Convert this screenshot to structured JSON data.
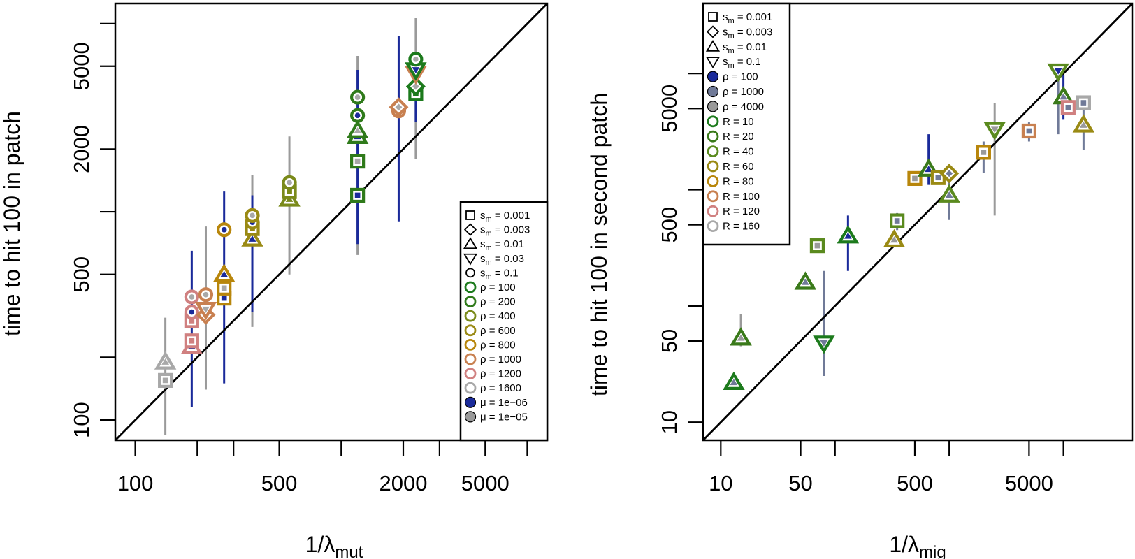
{
  "colors": {
    "sm": "#1c7a1c",
    "c2": "#2f7a1a",
    "c3": "#5a8a1e",
    "c4": "#7a8a1a",
    "c5": "#9a8a14",
    "c6": "#b8860b",
    "c7": "#c88050",
    "c8": "#d08080",
    "c9": "#a8a8a8",
    "blue": "#1a2a9a",
    "slate": "#707a98",
    "grey": "#9a9a9a"
  },
  "chart_data": [
    {
      "type": "scatter",
      "title": "",
      "xlabel": "1/λ",
      "xlabel_sub": "mut",
      "ylabel": "time to hit 100 in patch",
      "xscale": "log",
      "yscale": "log",
      "xlim": [
        80,
        10000
      ],
      "ylim": [
        80,
        10000
      ],
      "xticks": [
        100,
        200,
        300,
        500,
        1000,
        2000,
        3000,
        5000,
        8000
      ],
      "xtick_labels": [
        "100",
        "",
        "",
        "500",
        "",
        "2000",
        "",
        "5000",
        ""
      ],
      "yticks": [
        100,
        200,
        500,
        1000,
        2000,
        5000,
        8000
      ],
      "ytick_labels": [
        "100",
        "",
        "500",
        "",
        "2000",
        "5000",
        ""
      ],
      "diagonal": true,
      "legend": {
        "placement": "bottom-right",
        "entries": [
          {
            "label": "s",
            "sub": "m",
            "value": " = 0.001",
            "shape": "square",
            "style": "open-black"
          },
          {
            "label": "s",
            "sub": "m",
            "value": " = 0.003",
            "shape": "diamond",
            "style": "open-black"
          },
          {
            "label": "s",
            "sub": "m",
            "value": " = 0.01",
            "shape": "triangle-up",
            "style": "open-black"
          },
          {
            "label": "s",
            "sub": "m",
            "value": " = 0.03",
            "shape": "triangle-down",
            "style": "open-black"
          },
          {
            "label": "s",
            "sub": "m",
            "value": " = 0.1",
            "shape": "circle",
            "style": "open-black"
          },
          {
            "label": "ρ = 100",
            "shape": "circle",
            "style": "ring",
            "color": "#1c7a1c"
          },
          {
            "label": "ρ = 200",
            "shape": "circle",
            "style": "ring",
            "color": "#2f7a1a"
          },
          {
            "label": "ρ = 400",
            "shape": "circle",
            "style": "ring",
            "color": "#7a8a1a"
          },
          {
            "label": "ρ = 600",
            "shape": "circle",
            "style": "ring",
            "color": "#9a8a14"
          },
          {
            "label": "ρ = 800",
            "shape": "circle",
            "style": "ring",
            "color": "#b8860b"
          },
          {
            "label": "ρ = 1000",
            "shape": "circle",
            "style": "ring",
            "color": "#c88050"
          },
          {
            "label": "ρ = 1200",
            "shape": "circle",
            "style": "ring",
            "color": "#d08080"
          },
          {
            "label": "ρ = 1600",
            "shape": "circle",
            "style": "ring",
            "color": "#a8a8a8"
          },
          {
            "label": "μ = 1e−06",
            "shape": "circle",
            "style": "filled",
            "color": "#1a2a9a"
          },
          {
            "label": "μ = 1e−05",
            "shape": "circle",
            "style": "filled",
            "color": "#9a9a9a"
          }
        ]
      },
      "errorbars": [
        {
          "x": 140,
          "lo": 85,
          "hi": 310,
          "color": "#9a9a9a"
        },
        {
          "x": 188,
          "lo": 115,
          "hi": 650,
          "color": "#1a2a9a"
        },
        {
          "x": 220,
          "lo": 140,
          "hi": 850,
          "color": "#9a9a9a"
        },
        {
          "x": 270,
          "lo": 150,
          "hi": 1250,
          "color": "#1a2a9a"
        },
        {
          "x": 370,
          "lo": 280,
          "hi": 1500,
          "color": "#9a9a9a"
        },
        {
          "x": 370,
          "lo": 330,
          "hi": 1200,
          "color": "#1a2a9a"
        },
        {
          "x": 560,
          "lo": 500,
          "hi": 2300,
          "color": "#9a9a9a"
        },
        {
          "x": 1200,
          "lo": 620,
          "hi": 5600,
          "color": "#9a9a9a"
        },
        {
          "x": 1200,
          "lo": 700,
          "hi": 4800,
          "color": "#1a2a9a"
        },
        {
          "x": 1900,
          "lo": 900,
          "hi": 7000,
          "color": "#1a2a9a"
        },
        {
          "x": 2300,
          "lo": 1800,
          "hi": 8500,
          "color": "#9a9a9a"
        },
        {
          "x": 2300,
          "lo": 2700,
          "hi": 5000,
          "color": "#1a2a9a"
        }
      ],
      "points": [
        {
          "x": 140,
          "y": 190,
          "shape": "triangle-up",
          "edge": "#a8a8a8",
          "fill": "#a8a8a8"
        },
        {
          "x": 140,
          "y": 155,
          "shape": "square",
          "edge": "#a8a8a8",
          "fill": "#a8a8a8"
        },
        {
          "x": 188,
          "y": 225,
          "shape": "triangle-up",
          "edge": "#d08080",
          "fill": "#1a2a9a"
        },
        {
          "x": 188,
          "y": 240,
          "shape": "square",
          "edge": "#d08080",
          "fill": "#d08080"
        },
        {
          "x": 188,
          "y": 300,
          "shape": "square",
          "edge": "#d08080",
          "fill": "#d08080"
        },
        {
          "x": 188,
          "y": 330,
          "shape": "circle",
          "edge": "#d08080",
          "fill": "#1a2a9a"
        },
        {
          "x": 188,
          "y": 390,
          "shape": "circle",
          "edge": "#d08080",
          "fill": "#a8a8a8"
        },
        {
          "x": 220,
          "y": 320,
          "shape": "diamond",
          "edge": "#c88050",
          "fill": "#a8a8a8"
        },
        {
          "x": 220,
          "y": 340,
          "shape": "triangle-down",
          "edge": "#c88050",
          "fill": "#a8a8a8"
        },
        {
          "x": 220,
          "y": 400,
          "shape": "circle",
          "edge": "#c88050",
          "fill": "#a8a8a8"
        },
        {
          "x": 270,
          "y": 385,
          "shape": "square",
          "edge": "#b8860b",
          "fill": "#1a2a9a"
        },
        {
          "x": 270,
          "y": 430,
          "shape": "square",
          "edge": "#b8860b",
          "fill": "#a8a8a8"
        },
        {
          "x": 270,
          "y": 500,
          "shape": "triangle-up",
          "edge": "#b8860b",
          "fill": "#1a2a9a"
        },
        {
          "x": 270,
          "y": 820,
          "shape": "circle",
          "edge": "#b8860b",
          "fill": "#1a2a9a"
        },
        {
          "x": 370,
          "y": 740,
          "shape": "triangle-up",
          "edge": "#9a8a14",
          "fill": "#1a2a9a"
        },
        {
          "x": 370,
          "y": 830,
          "shape": "square",
          "edge": "#9a8a14",
          "fill": "#9a8a14"
        },
        {
          "x": 370,
          "y": 890,
          "shape": "circle",
          "edge": "#9a8a14",
          "fill": "#1a2a9a"
        },
        {
          "x": 370,
          "y": 960,
          "shape": "circle",
          "edge": "#9a8a14",
          "fill": "#a8a8a8"
        },
        {
          "x": 560,
          "y": 1150,
          "shape": "triangle-up",
          "edge": "#7a8a1a",
          "fill": "#7a8a1a"
        },
        {
          "x": 560,
          "y": 1250,
          "shape": "square",
          "edge": "#7a8a1a",
          "fill": "#7a8a1a"
        },
        {
          "x": 560,
          "y": 1380,
          "shape": "circle",
          "edge": "#7a8a1a",
          "fill": "#a8a8a8"
        },
        {
          "x": 1200,
          "y": 1200,
          "shape": "square",
          "edge": "#2f7a1a",
          "fill": "#1a2a9a"
        },
        {
          "x": 1200,
          "y": 1750,
          "shape": "square",
          "edge": "#2f7a1a",
          "fill": "#a8a8a8"
        },
        {
          "x": 1200,
          "y": 2300,
          "shape": "triangle-up",
          "edge": "#2f7a1a",
          "fill": "#1a2a9a"
        },
        {
          "x": 1200,
          "y": 2450,
          "shape": "triangle-up",
          "edge": "#2f7a1a",
          "fill": "#a8a8a8"
        },
        {
          "x": 1200,
          "y": 2900,
          "shape": "circle",
          "edge": "#2f7a1a",
          "fill": "#1a2a9a"
        },
        {
          "x": 1200,
          "y": 3550,
          "shape": "circle",
          "edge": "#2f7a1a",
          "fill": "#a8a8a8"
        },
        {
          "x": 1900,
          "y": 3050,
          "shape": "circle",
          "edge": "#c88050",
          "fill": "#1a2a9a"
        },
        {
          "x": 1900,
          "y": 3180,
          "shape": "diamond",
          "edge": "#c88050",
          "fill": "#a8a8a8"
        },
        {
          "x": 2300,
          "y": 3700,
          "shape": "square",
          "edge": "#1c7a1c",
          "fill": "#1c7a1c"
        },
        {
          "x": 2300,
          "y": 4000,
          "shape": "diamond",
          "edge": "#1c7a1c",
          "fill": "#a8a8a8"
        },
        {
          "x": 2300,
          "y": 4600,
          "shape": "triangle-down",
          "edge": "#c88050",
          "fill": "#a8a8a8"
        },
        {
          "x": 2300,
          "y": 4800,
          "shape": "triangle-down",
          "edge": "#1c7a1c",
          "fill": "#1a2a9a"
        },
        {
          "x": 2300,
          "y": 5400,
          "shape": "circle",
          "edge": "#1c7a1c",
          "fill": "#a8a8a8"
        }
      ]
    },
    {
      "type": "scatter",
      "title": "",
      "xlabel": "1/λ",
      "xlabel_sub": "mig",
      "ylabel": "time to hit 100 in second patch",
      "xscale": "log",
      "yscale": "log",
      "xlim": [
        7,
        40000
      ],
      "ylim": [
        7,
        40000
      ],
      "xticks": [
        10,
        50,
        100,
        500,
        1000,
        5000,
        10000
      ],
      "xtick_labels": [
        "10",
        "50",
        "",
        "500",
        "",
        "5000",
        ""
      ],
      "yticks": [
        10,
        50,
        100,
        500,
        1000,
        5000,
        10000
      ],
      "ytick_labels": [
        "10",
        "50",
        "",
        "500",
        "",
        "5000",
        ""
      ],
      "diagonal": true,
      "legend": {
        "placement": "top-left",
        "entries": [
          {
            "label": "s",
            "sub": "m",
            "value": " = 0.001",
            "shape": "square",
            "style": "open-black"
          },
          {
            "label": "s",
            "sub": "m",
            "value": " = 0.003",
            "shape": "diamond",
            "style": "open-black"
          },
          {
            "label": "s",
            "sub": "m",
            "value": " = 0.01",
            "shape": "triangle-up",
            "style": "open-black"
          },
          {
            "label": "s",
            "sub": "m",
            "value": " = 0.1",
            "shape": "triangle-down",
            "style": "open-black"
          },
          {
            "label": "ρ = 100",
            "shape": "circle",
            "style": "filled",
            "color": "#1a2a9a"
          },
          {
            "label": "ρ = 1000",
            "shape": "circle",
            "style": "filled",
            "color": "#707a98"
          },
          {
            "label": "ρ = 4000",
            "shape": "circle",
            "style": "filled",
            "color": "#9a9a9a"
          },
          {
            "label": "R = 10",
            "shape": "circle",
            "style": "ring",
            "color": "#1c7a1c"
          },
          {
            "label": "R = 20",
            "shape": "circle",
            "style": "ring",
            "color": "#3a7a1a"
          },
          {
            "label": "R = 40",
            "shape": "circle",
            "style": "ring",
            "color": "#5a8a1e"
          },
          {
            "label": "R = 60",
            "shape": "circle",
            "style": "ring",
            "color": "#9a8a14"
          },
          {
            "label": "R = 80",
            "shape": "circle",
            "style": "ring",
            "color": "#b8860b"
          },
          {
            "label": "R = 100",
            "shape": "circle",
            "style": "ring",
            "color": "#c88050"
          },
          {
            "label": "R = 120",
            "shape": "circle",
            "style": "ring",
            "color": "#d08080"
          },
          {
            "label": "R = 160",
            "shape": "circle",
            "style": "ring",
            "color": "#a8a8a8"
          }
        ]
      },
      "errorbars": [
        {
          "x": 15,
          "lo": 45,
          "hi": 85,
          "color": "#9a9a9a"
        },
        {
          "x": 80,
          "lo": 25,
          "hi": 200,
          "color": "#707a98"
        },
        {
          "x": 130,
          "lo": 200,
          "hi": 600,
          "color": "#1a2a9a"
        },
        {
          "x": 350,
          "lo": 450,
          "hi": 630,
          "color": "#707a98"
        },
        {
          "x": 660,
          "lo": 1100,
          "hi": 3000,
          "color": "#1a2a9a"
        },
        {
          "x": 1000,
          "lo": 550,
          "hi": 1650,
          "color": "#707a98"
        },
        {
          "x": 2000,
          "lo": 1400,
          "hi": 2600,
          "color": "#707a98"
        },
        {
          "x": 2500,
          "lo": 600,
          "hi": 5600,
          "color": "#9a9a9a"
        },
        {
          "x": 5000,
          "lo": 2600,
          "hi": 3800,
          "color": "#707a98"
        },
        {
          "x": 9000,
          "lo": 3000,
          "hi": 11000,
          "color": "#707a98"
        },
        {
          "x": 10000,
          "lo": 4000,
          "hi": 9800,
          "color": "#1a2a9a"
        },
        {
          "x": 11000,
          "lo": 4500,
          "hi": 6200,
          "color": "#707a98"
        },
        {
          "x": 15000,
          "lo": 2200,
          "hi": 6200,
          "color": "#707a98"
        }
      ],
      "points": [
        {
          "x": 13,
          "y": 22,
          "shape": "triangle-up",
          "edge": "#1c7a1c",
          "fill": "#707a98"
        },
        {
          "x": 15,
          "y": 53,
          "shape": "triangle-up",
          "edge": "#3a7a1a",
          "fill": "#9a9a9a"
        },
        {
          "x": 55,
          "y": 160,
          "shape": "triangle-up",
          "edge": "#3a7a1a",
          "fill": "#707a98"
        },
        {
          "x": 70,
          "y": 330,
          "shape": "square",
          "edge": "#5a8a1e",
          "fill": "#9a9a9a"
        },
        {
          "x": 80,
          "y": 48,
          "shape": "triangle-down",
          "edge": "#1c7a1c",
          "fill": "#707a98"
        },
        {
          "x": 130,
          "y": 400,
          "shape": "triangle-up",
          "edge": "#1c7a1c",
          "fill": "#1a2a9a"
        },
        {
          "x": 330,
          "y": 370,
          "shape": "triangle-up",
          "edge": "#9a8a14",
          "fill": "#9a9a9a"
        },
        {
          "x": 350,
          "y": 540,
          "shape": "square",
          "edge": "#5a8a1e",
          "fill": "#707a98"
        },
        {
          "x": 500,
          "y": 1250,
          "shape": "square",
          "edge": "#b8860b",
          "fill": "#9a9a9a"
        },
        {
          "x": 660,
          "y": 1500,
          "shape": "triangle-up",
          "edge": "#3a7a1a",
          "fill": "#1a2a9a"
        },
        {
          "x": 800,
          "y": 1270,
          "shape": "square",
          "edge": "#9a8a14",
          "fill": "#707a98"
        },
        {
          "x": 1000,
          "y": 900,
          "shape": "triangle-up",
          "edge": "#5a8a1e",
          "fill": "#707a98"
        },
        {
          "x": 1000,
          "y": 1380,
          "shape": "diamond",
          "edge": "#9a8a14",
          "fill": "#707a98"
        },
        {
          "x": 2000,
          "y": 2100,
          "shape": "square",
          "edge": "#b8860b",
          "fill": "#9a9a9a"
        },
        {
          "x": 2500,
          "y": 3300,
          "shape": "triangle-down",
          "edge": "#5a8a1e",
          "fill": "#9a9a9a"
        },
        {
          "x": 5000,
          "y": 3200,
          "shape": "square",
          "edge": "#c88050",
          "fill": "#707a98"
        },
        {
          "x": 9000,
          "y": 10500,
          "shape": "triangle-down",
          "edge": "#5a8a1e",
          "fill": "#1a2a9a"
        },
        {
          "x": 10000,
          "y": 6300,
          "shape": "triangle-up",
          "edge": "#3a7a1a",
          "fill": "#707a98"
        },
        {
          "x": 11000,
          "y": 5100,
          "shape": "square",
          "edge": "#d08080",
          "fill": "#707a98"
        },
        {
          "x": 15000,
          "y": 5600,
          "shape": "square",
          "edge": "#a8a8a8",
          "fill": "#707a98"
        },
        {
          "x": 15000,
          "y": 3600,
          "shape": "triangle-up",
          "edge": "#9a8a14",
          "fill": "#9a9a9a"
        }
      ]
    }
  ]
}
